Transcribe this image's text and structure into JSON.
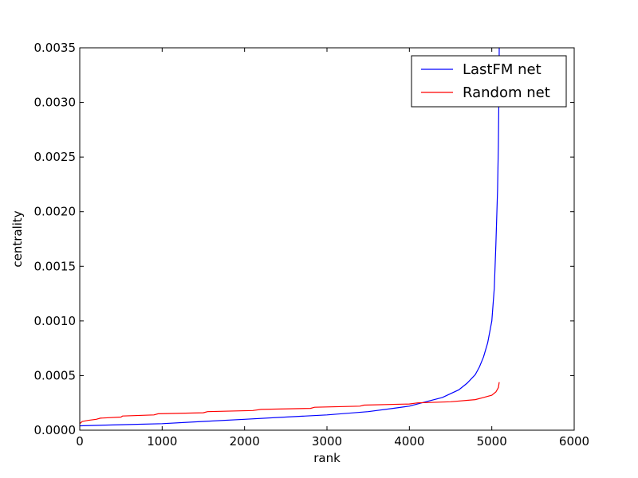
{
  "chart_data": {
    "type": "line",
    "title": "",
    "xlabel": "rank",
    "ylabel": "centrality",
    "xlim": [
      0,
      6000
    ],
    "ylim": [
      0,
      0.0035
    ],
    "xticks": [
      0,
      1000,
      2000,
      3000,
      4000,
      5000,
      6000
    ],
    "xtick_labels": [
      "0",
      "1000",
      "2000",
      "3000",
      "4000",
      "5000",
      "6000"
    ],
    "yticks": [
      0,
      0.0005,
      0.001,
      0.0015,
      0.002,
      0.0025,
      0.003,
      0.0035
    ],
    "ytick_labels": [
      "0.0000",
      "0.0005",
      "0.0010",
      "0.0015",
      "0.0020",
      "0.0025",
      "0.0030",
      "0.0035"
    ],
    "grid": false,
    "legend_position": "top-right",
    "series": [
      {
        "name": "LastFM net",
        "color": "#0000ff",
        "x": [
          0,
          500,
          1000,
          1500,
          2000,
          2500,
          3000,
          3500,
          3800,
          4000,
          4200,
          4400,
          4600,
          4700,
          4800,
          4850,
          4900,
          4950,
          5000,
          5030,
          5050,
          5070,
          5080,
          5085,
          5090
        ],
        "y": [
          4e-05,
          5e-05,
          6e-05,
          8e-05,
          0.0001,
          0.00012,
          0.00014,
          0.00017,
          0.0002,
          0.00022,
          0.00026,
          0.0003,
          0.00037,
          0.00043,
          0.00051,
          0.00058,
          0.00067,
          0.0008,
          0.001,
          0.0013,
          0.0017,
          0.0022,
          0.0026,
          0.003,
          0.0035
        ]
      },
      {
        "name": "Random net",
        "color": "#ff0000",
        "x": [
          0,
          30,
          100,
          200,
          250,
          500,
          520,
          900,
          950,
          1500,
          1550,
          2100,
          2200,
          2800,
          2850,
          3400,
          3450,
          4000,
          4100,
          4500,
          4800,
          4900,
          5000,
          5050,
          5080,
          5090
        ],
        "y": [
          6e-05,
          8e-05,
          9e-05,
          0.0001,
          0.00011,
          0.00012,
          0.00013,
          0.00014,
          0.00015,
          0.00016,
          0.00017,
          0.00018,
          0.00019,
          0.0002,
          0.00021,
          0.00022,
          0.00023,
          0.00024,
          0.00025,
          0.00026,
          0.00028,
          0.0003,
          0.00032,
          0.00035,
          0.00039,
          0.00044
        ]
      }
    ]
  }
}
